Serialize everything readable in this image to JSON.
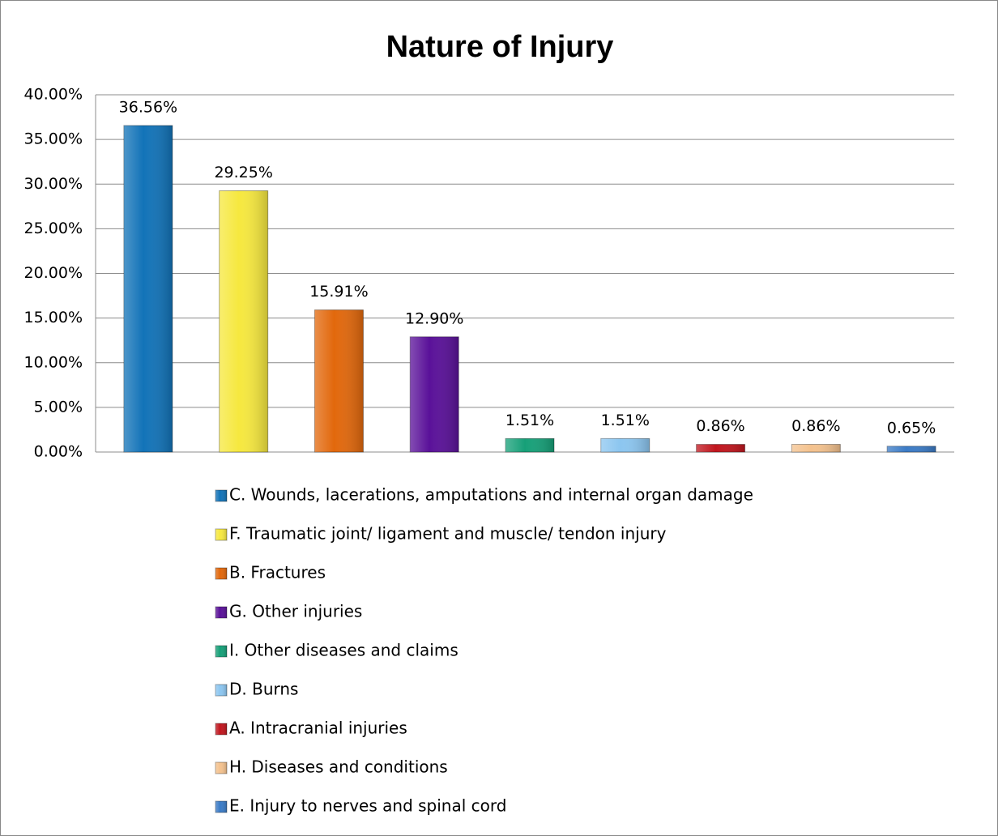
{
  "chart_data": {
    "type": "bar",
    "title": "Nature of Injury",
    "series": [
      {
        "name": "C. Wounds, lacerations, amputations and internal organ damage",
        "color": "#1273b8",
        "values": [
          36.56
        ],
        "value_labels": [
          "36.56%"
        ]
      },
      {
        "name": "F. Traumatic joint/ ligament and muscle/ tendon injury",
        "color": "#f6e83f",
        "values": [
          29.25
        ],
        "value_labels": [
          "29.25%"
        ]
      },
      {
        "name": "B. Fractures",
        "color": "#e2680c",
        "values": [
          15.91
        ],
        "value_labels": [
          "15.91%"
        ]
      },
      {
        "name": "G. Other injuries",
        "color": "#5a1199",
        "values": [
          12.9
        ],
        "value_labels": [
          "12.90%"
        ]
      },
      {
        "name": "I. Other diseases and claims",
        "color": "#16a078",
        "values": [
          1.51
        ],
        "value_labels": [
          "1.51%"
        ]
      },
      {
        "name": "D. Burns",
        "color": "#8cc6f0",
        "values": [
          1.51
        ],
        "value_labels": [
          "1.51%"
        ]
      },
      {
        "name": "A. Intracranial injuries",
        "color": "#c1161e",
        "values": [
          0.86
        ],
        "value_labels": [
          "0.86%"
        ]
      },
      {
        "name": "H. Diseases and conditions",
        "color": "#f4c28e",
        "values": [
          0.86
        ],
        "value_labels": [
          "0.86%"
        ]
      },
      {
        "name": "E. Injury to nerves and spinal cord",
        "color": "#3b7bc6",
        "values": [
          0.65
        ],
        "value_labels": [
          "0.65%"
        ]
      }
    ],
    "ylim": [
      0,
      40
    ],
    "yticks": [
      {
        "value": 0,
        "label": "0.00%"
      },
      {
        "value": 5,
        "label": "5.00%"
      },
      {
        "value": 10,
        "label": "10.00%"
      },
      {
        "value": 15,
        "label": "15.00%"
      },
      {
        "value": 20,
        "label": "20.00%"
      },
      {
        "value": 25,
        "label": "25.00%"
      },
      {
        "value": 30,
        "label": "30.00%"
      },
      {
        "value": 35,
        "label": "35.00%"
      },
      {
        "value": 40,
        "label": "40.00%"
      }
    ],
    "grid": true,
    "legend": "bottom"
  }
}
